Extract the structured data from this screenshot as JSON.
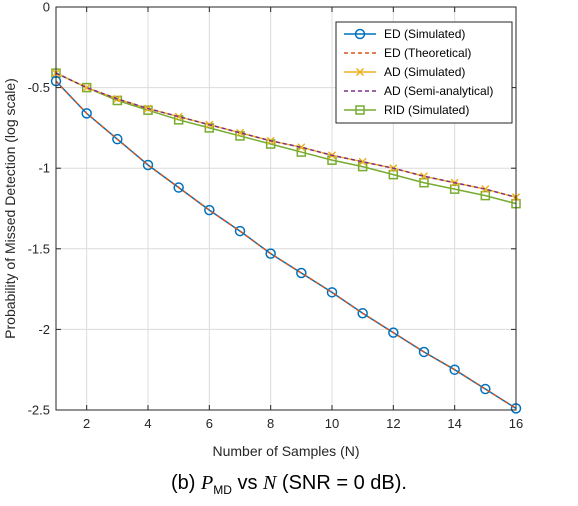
{
  "chart_data": {
    "type": "line",
    "xlabel": "Number of Samples (N)",
    "ylabel": "Probability of Missed Detection (log scale)",
    "xlim": [
      1,
      16
    ],
    "ylim": [
      -2.5,
      0
    ],
    "xticks": [
      2,
      4,
      6,
      8,
      10,
      12,
      14,
      16
    ],
    "yticks": [
      0,
      -0.5,
      -1,
      -1.5,
      -2,
      -2.5
    ],
    "xtick_labels": [
      "2",
      "4",
      "6",
      "8",
      "10",
      "12",
      "14",
      "16"
    ],
    "ytick_labels": [
      "0",
      "-0.5",
      "-1",
      "-1.5",
      "-2",
      "-2.5"
    ],
    "grid": true,
    "legend_position": "top-right",
    "x": [
      1,
      2,
      3,
      4,
      5,
      6,
      7,
      8,
      9,
      10,
      11,
      12,
      13,
      14,
      15,
      16
    ],
    "series": [
      {
        "name": "ED (Simulated)",
        "color": "#0072BD",
        "style": "solid",
        "marker": "circle",
        "values": [
          -0.46,
          -0.66,
          -0.82,
          -0.98,
          -1.12,
          -1.26,
          -1.39,
          -1.53,
          -1.65,
          -1.77,
          -1.9,
          -2.02,
          -2.14,
          -2.25,
          -2.37,
          -2.49
        ]
      },
      {
        "name": "ED (Theoretical)",
        "color": "#D95319",
        "style": "dashed",
        "marker": "none",
        "values": [
          -0.46,
          -0.66,
          -0.82,
          -0.98,
          -1.12,
          -1.26,
          -1.39,
          -1.53,
          -1.65,
          -1.77,
          -1.9,
          -2.02,
          -2.14,
          -2.25,
          -2.37,
          -2.49
        ]
      },
      {
        "name": "AD (Simulated)",
        "color": "#EDB120",
        "style": "solid",
        "marker": "x",
        "values": [
          -0.41,
          -0.5,
          -0.57,
          -0.63,
          -0.68,
          -0.73,
          -0.78,
          -0.83,
          -0.87,
          -0.92,
          -0.96,
          -1.0,
          -1.05,
          -1.09,
          -1.13,
          -1.18
        ]
      },
      {
        "name": "AD (Semi-analytical)",
        "color": "#7E2F8E",
        "style": "dashed",
        "marker": "none",
        "values": [
          -0.41,
          -0.5,
          -0.57,
          -0.63,
          -0.68,
          -0.73,
          -0.78,
          -0.83,
          -0.87,
          -0.92,
          -0.96,
          -1.0,
          -1.05,
          -1.09,
          -1.13,
          -1.18
        ]
      },
      {
        "name": "RID (Simulated)",
        "color": "#77AC30",
        "style": "solid",
        "marker": "square",
        "values": [
          -0.41,
          -0.5,
          -0.58,
          -0.64,
          -0.7,
          -0.75,
          -0.8,
          -0.85,
          -0.9,
          -0.95,
          -0.99,
          -1.04,
          -1.09,
          -1.13,
          -1.17,
          -1.22
        ]
      }
    ]
  },
  "caption": {
    "prefix": "(b) ",
    "p_symbol": "P",
    "p_subscript": "MD",
    "vs": " vs ",
    "n_symbol": "N",
    "suffix": " (SNR = 0 dB)."
  }
}
